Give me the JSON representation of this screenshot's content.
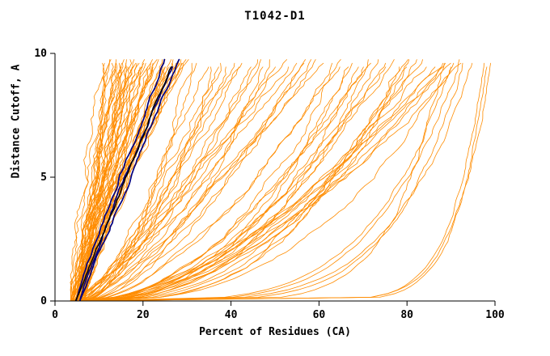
{
  "chart_data": {
    "type": "line",
    "title": "T1042-D1",
    "xlabel": "Percent of Residues (CA)",
    "ylabel": "Distance Cutoff, A",
    "xlim": [
      0,
      100
    ],
    "ylim": [
      0,
      10
    ],
    "x_ticks": [
      0,
      20,
      40,
      60,
      80,
      100
    ],
    "y_ticks": [
      0,
      5,
      10
    ],
    "grid": false,
    "legend": "none",
    "colors": {
      "prediction_orange": "#FF8C00",
      "highlight_navy": "#000080",
      "highlight_black": "#000000",
      "axis": "#000000",
      "background": "#FFFFFF"
    },
    "description": "Cumulative curves: percent of CA residues (x) under distance cutoff in Angstroms (y); many orange prediction curves, a few dark navy/black highlighted curves",
    "y_top_range": [
      9.5,
      9.85
    ],
    "seed": 7,
    "series_families": [
      {
        "name": "steep-bundle",
        "color": "#FF8C00",
        "width": 0.8,
        "count": 56,
        "x0": [
          3.5,
          7.0
        ],
        "xtop": [
          11,
          30
        ],
        "p": [
          0.95,
          1.3
        ],
        "noise": 0.85
      },
      {
        "name": "mid-fan",
        "color": "#FF8C00",
        "width": 0.8,
        "count": 24,
        "x0": [
          4.0,
          8.0
        ],
        "xtop": [
          31,
          62
        ],
        "p": [
          0.55,
          0.9
        ],
        "noise": 0.95
      },
      {
        "name": "right-cluster",
        "color": "#FF8C00",
        "width": 0.8,
        "count": 27,
        "x0": [
          4.0,
          9.0
        ],
        "xtop": [
          63,
          93
        ],
        "p": [
          0.35,
          0.62
        ],
        "noise": 0.95
      },
      {
        "name": "low-flat",
        "color": "#FF8C00",
        "width": 0.8,
        "count": 5,
        "x0": [
          4.0,
          8.0
        ],
        "xtop": [
          88,
          96
        ],
        "p": [
          0.14,
          0.25
        ],
        "noise": 0.5
      },
      {
        "name": "far-right",
        "color": "#FF8C00",
        "width": 0.8,
        "count": 3,
        "x0": [
          4.0,
          7.0
        ],
        "xtop": [
          97,
          99.5
        ],
        "p": [
          0.06,
          0.12
        ],
        "noise": 0.3
      },
      {
        "name": "highlight-navy",
        "color": "#000080",
        "width": 1.7,
        "count": 3,
        "x0": [
          4.5,
          6.0
        ],
        "xtop": [
          24.5,
          29
        ],
        "p": [
          1.0,
          1.15
        ],
        "noise": 0.35
      },
      {
        "name": "highlight-black",
        "color": "#000000",
        "width": 1.5,
        "count": 1,
        "x0": [
          4.5,
          5.5
        ],
        "xtop": [
          25,
          27
        ],
        "p": [
          1.0,
          1.1
        ],
        "noise": 0.3
      }
    ]
  }
}
